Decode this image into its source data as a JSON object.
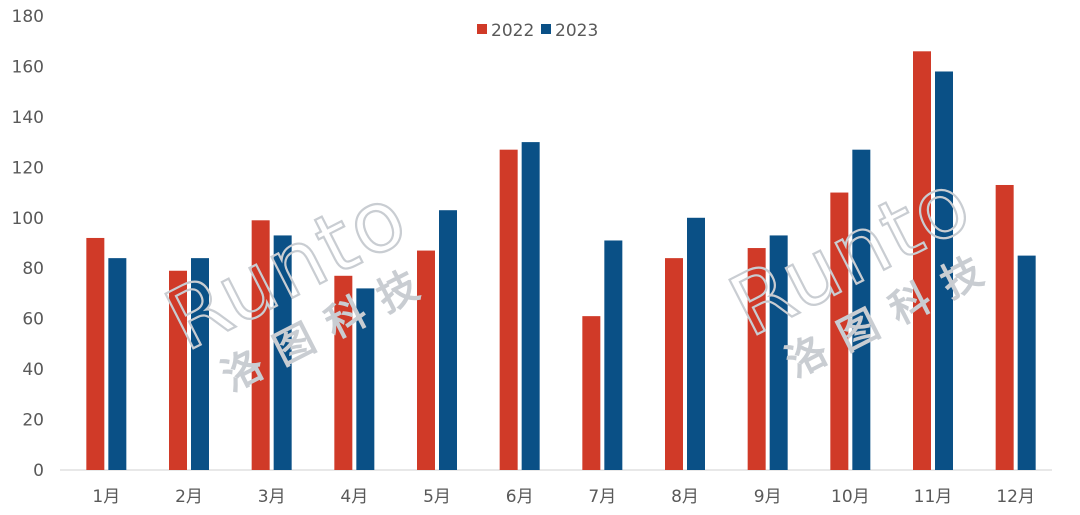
{
  "chart_data": {
    "type": "bar",
    "categories": [
      "1月",
      "2月",
      "3月",
      "4月",
      "5月",
      "6月",
      "7月",
      "8月",
      "9月",
      "10月",
      "11月",
      "12月"
    ],
    "series": [
      {
        "name": "2022",
        "color": "#d03a28",
        "values": [
          92,
          79,
          99,
          77,
          87,
          127,
          61,
          84,
          88,
          110,
          166,
          113
        ]
      },
      {
        "name": "2023",
        "color": "#0a5086",
        "values": [
          84,
          84,
          93,
          72,
          103,
          130,
          91,
          100,
          93,
          127,
          158,
          85
        ]
      }
    ],
    "ylim": [
      0,
      180
    ],
    "yticks": [
      0,
      20,
      40,
      60,
      80,
      100,
      120,
      140,
      160,
      180
    ],
    "title": "",
    "xlabel": "",
    "ylabel": "",
    "legend_position": "top-center",
    "grid": false
  },
  "watermark": {
    "latin": "Runto",
    "cjk": "洛图科技"
  }
}
